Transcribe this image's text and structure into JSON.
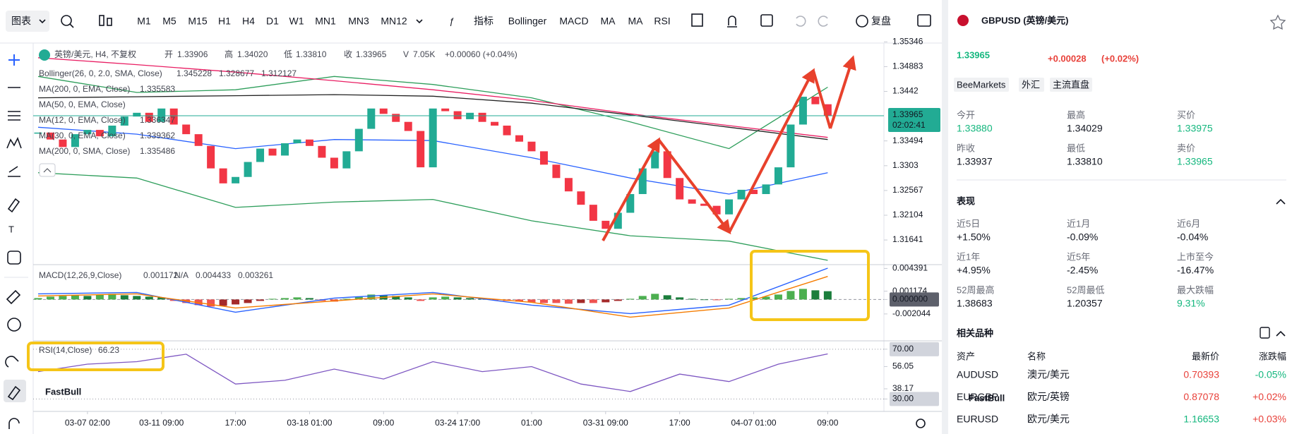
{
  "toolbar": {
    "chart_menu": "图表",
    "timeframes": [
      "M1",
      "M5",
      "M15",
      "H1",
      "H4",
      "D1",
      "W1",
      "MN1",
      "MN3",
      "MN12"
    ],
    "active_timeframe": 4,
    "indicators": [
      "指标",
      "Bollinger",
      "MACD",
      "MA",
      "MA",
      "RSI"
    ],
    "replay": "复盘"
  },
  "chart": {
    "type": "candlestick",
    "header": {
      "symbol": "英镑/美元, H4, 不复权",
      "fields": [
        [
          "开",
          "1.33906"
        ],
        [
          "高",
          "1.34020"
        ],
        [
          "低",
          "1.33810"
        ],
        [
          "收",
          "1.33965"
        ],
        [
          "V",
          "7.05K"
        ]
      ],
      "change": "+0.00060 (+0.04%)"
    },
    "overlays": [
      {
        "name": "Bollinger(26, 0, 2.0, SMA, Close)",
        "readings": [
          "1.345228",
          "1.328677",
          "1.312127"
        ],
        "colors": [
          "#2e9e5b",
          "#2962ff",
          "#2e9e5b"
        ]
      },
      {
        "name": "MA(200, 0, EMA, Close)",
        "readings": [
          "1.335583"
        ],
        "colors": [
          "#222222"
        ]
      },
      {
        "name": "MA(50, 0, EMA, Close)",
        "readings": [],
        "colors": []
      },
      {
        "name": "MA(12, 0, EMA, Close)",
        "readings": [
          "1.336347"
        ],
        "colors": [
          "#e53935"
        ]
      },
      {
        "name": "MA(30, 0, EMA, Close)",
        "readings": [
          "1.339362"
        ],
        "colors": [
          "#d4a000"
        ]
      },
      {
        "name": "MA(200, 0, SMA, Close)",
        "readings": [
          "1.335486"
        ],
        "colors": [
          "#e91e63"
        ]
      }
    ],
    "xlim": [
      -0.4,
      68.5
    ],
    "xticks": [
      {
        "value": 4,
        "label": "03-07 02:00"
      },
      {
        "value": 10,
        "label": "03-11 09:00"
      },
      {
        "value": 16,
        "label": "17:00"
      },
      {
        "value": 22,
        "label": "03-18 01:00"
      },
      {
        "value": 28,
        "label": "09:00"
      },
      {
        "value": 34,
        "label": "03-24 17:00"
      },
      {
        "value": 40,
        "label": "01:00"
      },
      {
        "value": 46,
        "label": "03-31 09:00"
      },
      {
        "value": 52,
        "label": "17:00"
      },
      {
        "value": 58,
        "label": "04-07 01:00"
      },
      {
        "value": 64,
        "label": "09:00"
      }
    ],
    "ylim": [
      1.3118,
      1.3543
    ],
    "yticks": [
      1.35346,
      1.34883,
      1.3442,
      1.33494,
      1.3303,
      1.32567,
      1.32104,
      1.31641
    ],
    "up_color": "#22ab94",
    "down_color": "#f23645",
    "closes": [
      1.3365,
      1.3352,
      1.3338,
      1.3362,
      1.337,
      1.3358,
      1.3378,
      1.3395,
      1.3402,
      1.3385,
      1.341,
      1.338,
      1.3362,
      1.334,
      1.3298,
      1.327,
      1.3282,
      1.331,
      1.3335,
      1.3322,
      1.3345,
      1.3352,
      1.334,
      1.3318,
      1.3298,
      1.333,
      1.3372,
      1.341,
      1.34,
      1.3385,
      1.3368,
      1.33,
      1.341,
      1.3405,
      1.339,
      1.3402,
      1.3385,
      1.3378,
      1.336,
      1.3348,
      1.333,
      1.3305,
      1.328,
      1.3255,
      1.323,
      1.32,
      1.3185,
      1.3215,
      1.325,
      1.3298,
      1.333,
      1.328,
      1.324,
      1.3232,
      1.3228,
      1.3212,
      1.324,
      1.3258,
      1.325,
      1.3268,
      1.33,
      1.338,
      1.3432,
      1.3418,
      1.33965
    ],
    "last_price": 1.33965,
    "countdown": "02:02:41",
    "line_x": [
      0,
      8,
      16,
      24,
      32,
      40,
      48,
      56,
      64
    ],
    "lines": [
      {
        "color": "#2e9e5b",
        "values": [
          1.347,
          1.344,
          1.3445,
          1.347,
          1.3455,
          1.343,
          1.3385,
          1.3335,
          1.345
        ]
      },
      {
        "color": "#2e9e5b",
        "values": [
          1.329,
          1.328,
          1.3225,
          1.3235,
          1.324,
          1.32,
          1.3172,
          1.3162,
          1.3126
        ]
      },
      {
        "color": "#2962ff",
        "values": [
          1.3375,
          1.3362,
          1.3335,
          1.3352,
          1.335,
          1.3318,
          1.328,
          1.325,
          1.329
        ]
      },
      {
        "color": "#222222",
        "values": [
          1.343,
          1.3432,
          1.3434,
          1.3436,
          1.3433,
          1.342,
          1.3398,
          1.3375,
          1.3352
        ]
      },
      {
        "color": "#e91e63",
        "values": [
          1.3505,
          1.3492,
          1.3478,
          1.3462,
          1.3445,
          1.3425,
          1.34,
          1.3378,
          1.3356
        ]
      }
    ],
    "macd": {
      "name": "MACD(12,26,9,Close)",
      "readings": [
        "0.001172",
        "N/A",
        "0.004433",
        "0.003261"
      ],
      "reading_colors": [
        "#2e9e5b",
        "#f57c00",
        "#2962ff",
        "#f57c00"
      ],
      "ylim": [
        -0.00585,
        0.00493
      ],
      "yticks": [
        0.004391,
        0.001174,
        {
          "value": 0,
          "label": "0.000000"
        },
        -0.002044
      ],
      "histogram": [
        0.0002,
        0.0004,
        0.0005,
        0.0006,
        0.0005,
        0.0007,
        0.0008,
        0.0006,
        0.0005,
        0.0004,
        0.0003,
        -0.0002,
        -0.0005,
        -0.0008,
        -0.001,
        -0.0009,
        -0.0007,
        -0.0005,
        -0.0002,
        0.0001,
        0.0002,
        0.0003,
        0.0002,
        -0.0002,
        -0.0003,
        0.0001,
        0.0004,
        0.0007,
        0.0006,
        0.0005,
        0.0003,
        -0.0002,
        0.0003,
        0.0004,
        0.0003,
        0.0002,
        0.0001,
        -0.0001,
        -0.0002,
        -0.0003,
        -0.0004,
        -0.0005,
        -0.0005,
        -0.0006,
        -0.0005,
        -0.0005,
        -0.0004,
        -0.0002,
        0.0001,
        0.0005,
        0.0008,
        0.0006,
        0.0003,
        0.0001,
        0,
        -0.0001,
        0.0001,
        0.0002,
        0.0003,
        0.0004,
        0.0007,
        0.0012,
        0.0015,
        0.0013,
        0.001172
      ],
      "macd_line": {
        "color": "#2962ff",
        "values": [
          0.0008,
          0.001,
          -0.0018,
          0.0002,
          0.001,
          -0.0008,
          -0.002,
          -0.0008,
          0.004433
        ]
      },
      "signal_line": {
        "color": "#f57c00",
        "values": [
          0.0005,
          0.0008,
          -0.0012,
          -0.0002,
          0.0008,
          -0.0004,
          -0.0025,
          -0.0012,
          0.003261
        ]
      }
    },
    "rsi": {
      "name": "RSI(14,Close)",
      "reading": "66.23",
      "color": "#7e57c2",
      "ylim": [
        20,
        76.7
      ],
      "yticks": [
        {
          "value": 70,
          "label": "70.00"
        },
        56.05,
        38.17,
        {
          "value": 30,
          "label": "30.00"
        }
      ],
      "x": [
        0,
        4,
        8,
        12,
        16,
        20,
        24,
        28,
        32,
        36,
        40,
        44,
        48,
        52,
        56,
        60,
        64
      ],
      "values": [
        52,
        58,
        60,
        66,
        42,
        45,
        54,
        46,
        60,
        52,
        56,
        42,
        36,
        50,
        44,
        58,
        66.23
      ]
    }
  },
  "watermark": "FastBull",
  "quote": {
    "symbol": "GBPUSD (英镑/美元)",
    "price": "1.33965",
    "change": "+0.00028",
    "change_pct": "(+0.02%)",
    "tags": [
      "BeeMarkets",
      "外汇",
      "主流直盘"
    ],
    "stats": [
      [
        "今开",
        "1.33880"
      ],
      [
        "最高",
        "1.34029"
      ],
      [
        "买价",
        "1.33975"
      ],
      [
        "昨收",
        "1.33937"
      ],
      [
        "最低",
        "1.33810"
      ],
      [
        "卖价",
        "1.33965"
      ]
    ]
  },
  "performance": {
    "title": "表现",
    "items": [
      [
        "近5日",
        "+1.50%"
      ],
      [
        "近1月",
        "-0.09%"
      ],
      [
        "近6月",
        "-0.04%"
      ],
      [
        "近1年",
        "+4.95%"
      ],
      [
        "近5年",
        "-2.45%"
      ],
      [
        "上市至今",
        "-16.47%"
      ],
      [
        "52周最高",
        "1.38683"
      ],
      [
        "52周最低",
        "1.20357"
      ],
      [
        "最大跌幅",
        "9.31%"
      ]
    ]
  },
  "related": {
    "title": "相关品种",
    "header": [
      "资产",
      "名称",
      "最新价",
      "涨跌幅"
    ],
    "rows": [
      [
        "AUDUSD",
        "澳元/美元",
        "0.70393",
        "-0.05%"
      ],
      [
        "EURGBP",
        "欧元/英镑",
        "0.87078",
        "+0.02%"
      ],
      [
        "EURUSD",
        "欧元/美元",
        "1.16653",
        "+0.03%"
      ]
    ]
  }
}
